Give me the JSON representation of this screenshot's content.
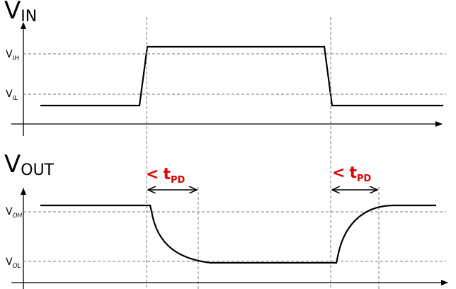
{
  "labels": {
    "vin_main": "V",
    "vin_sub": "IN",
    "vout_main": "V",
    "vout_sub": "OUT",
    "vih_main": "V",
    "vih_sub": "IH",
    "vil_main": "V",
    "vil_sub": "IL",
    "voh_main": "V",
    "voh_sub": "OH",
    "vol_main": "V",
    "vol_sub": "OL",
    "tpd_bullet": "<",
    "tpd_main": "t",
    "tpd_sub": "PD"
  },
  "colors": {
    "annotation": "#e00000",
    "signal": "#000000",
    "guide": "#777777"
  }
}
